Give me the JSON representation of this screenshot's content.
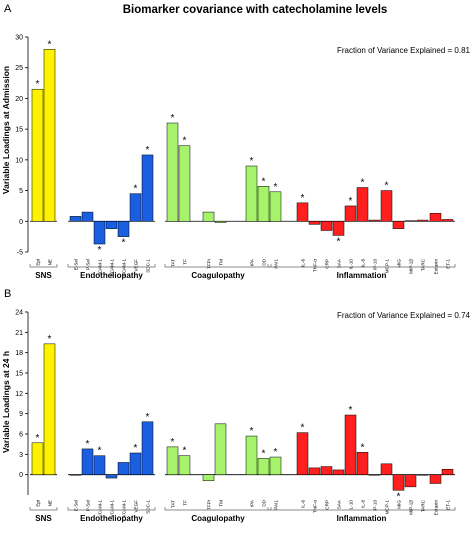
{
  "title": "Biomarker covariance with catecholamine levels",
  "colors": {
    "SNS": "#fff200",
    "Endotheliopathy": "#1a5fe0",
    "Coagulopathy": "#a6f26b",
    "Inflammation": "#ff1f1f"
  },
  "groups": [
    {
      "key": "SNS",
      "label": "SNS",
      "start": 0,
      "end": 1
    },
    {
      "key": "Endotheliopathy",
      "label": "Endotheliopathy",
      "start": 2,
      "end": 8
    },
    {
      "key": "Coagulopathy",
      "label": "Coagulopathy",
      "start": 9,
      "end": 14
    },
    {
      "key": "Inflammation",
      "label": "Inflammation",
      "start": 15,
      "end": 28
    }
  ],
  "chart_data": [
    {
      "type": "bar",
      "panel": "A",
      "ylabel": "Variable Loadings at Admission",
      "annotation": "Fraction of Variance Explained = 0.81",
      "ylim": [
        -5,
        30
      ],
      "yticks": [
        -5,
        0,
        5,
        10,
        15,
        20,
        25,
        30
      ],
      "categories": [
        "Epi",
        "NE",
        "E-Sel",
        "P-Sel",
        "ICAM-1",
        "VCAM-1",
        "VCAM-1",
        "VEGF",
        "SDC-1",
        "TAT",
        "TF",
        "TFPI",
        "TM",
        "tPA",
        "DD",
        "PAI1",
        "IL-6",
        "TNF-α",
        "CRP",
        "SAA",
        "IL-10",
        "IL-8",
        "IP-10",
        "MCP-1",
        "MIG",
        "MIP-1β",
        "TARC",
        "Eotaxin",
        "ET-1"
      ],
      "groups": [
        "SNS",
        "SNS",
        "Endotheliopathy",
        "Endotheliopathy",
        "Endotheliopathy",
        "Endotheliopathy",
        "Endotheliopathy",
        "Endotheliopathy",
        "Endotheliopathy",
        "Coagulopathy",
        "Coagulopathy",
        "Coagulopathy",
        "Coagulopathy",
        "Coagulopathy",
        "Coagulopathy",
        "Coagulopathy",
        "Inflammation",
        "Inflammation",
        "Inflammation",
        "Inflammation",
        "Inflammation",
        "Inflammation",
        "Inflammation",
        "Inflammation",
        "Inflammation",
        "Inflammation",
        "Inflammation",
        "Inflammation",
        "Inflammation"
      ],
      "values": [
        21.5,
        28,
        0.8,
        1.5,
        -3.7,
        -1.2,
        -2.5,
        4.5,
        10.8,
        16,
        12.3,
        1.5,
        -0.2,
        9,
        5.7,
        4.8,
        3,
        -0.5,
        -1.5,
        -2.3,
        2.5,
        5.5,
        0.2,
        5,
        -1.2,
        0.1,
        0.2,
        1.3,
        0.3
      ],
      "significant": [
        true,
        true,
        false,
        false,
        true,
        false,
        true,
        true,
        true,
        true,
        true,
        false,
        false,
        true,
        true,
        true,
        true,
        false,
        false,
        true,
        true,
        true,
        false,
        true,
        false,
        false,
        false,
        false,
        false
      ]
    },
    {
      "type": "bar",
      "panel": "B",
      "ylabel": "Variable Loadings at 24 h",
      "annotation": "Fraction of Variance Explained = 0.74",
      "ylim": [
        -3,
        24
      ],
      "yticks": [
        0,
        3,
        6,
        9,
        12,
        15,
        18,
        21,
        24
      ],
      "categories": [
        "Epi",
        "NE",
        "E-Sel",
        "P-Sel",
        "ICAM-1",
        "VCAM-1",
        "VCAM-1",
        "VEGF",
        "SDC-1",
        "TAT",
        "TF",
        "TFPI",
        "TM",
        "tPA",
        "DD",
        "PAI1",
        "IL-6",
        "TNF-α",
        "CRP",
        "SAA",
        "IL-10",
        "IL-8",
        "IP-10",
        "MCP-1",
        "MIG",
        "MIP-1β",
        "TARC",
        "Eotaxin",
        "ET-1"
      ],
      "groups": [
        "SNS",
        "SNS",
        "Endotheliopathy",
        "Endotheliopathy",
        "Endotheliopathy",
        "Endotheliopathy",
        "Endotheliopathy",
        "Endotheliopathy",
        "Endotheliopathy",
        "Coagulopathy",
        "Coagulopathy",
        "Coagulopathy",
        "Coagulopathy",
        "Coagulopathy",
        "Coagulopathy",
        "Coagulopathy",
        "Inflammation",
        "Inflammation",
        "Inflammation",
        "Inflammation",
        "Inflammation",
        "Inflammation",
        "Inflammation",
        "Inflammation",
        "Inflammation",
        "Inflammation",
        "Inflammation",
        "Inflammation",
        "Inflammation"
      ],
      "values": [
        4.7,
        19.3,
        0,
        3.8,
        2.8,
        -0.5,
        1.8,
        3.2,
        7.8,
        4.1,
        2.8,
        -0.9,
        7.5,
        5.7,
        2.4,
        2.6,
        6.2,
        1,
        1.2,
        0.7,
        8.8,
        3.3,
        0,
        1.6,
        -2.3,
        -1.8,
        0,
        -1.3,
        0.8
      ],
      "significant": [
        true,
        true,
        false,
        true,
        true,
        false,
        false,
        true,
        true,
        true,
        true,
        false,
        false,
        true,
        true,
        true,
        true,
        false,
        false,
        false,
        true,
        true,
        false,
        false,
        true,
        false,
        false,
        false,
        false
      ]
    }
  ]
}
